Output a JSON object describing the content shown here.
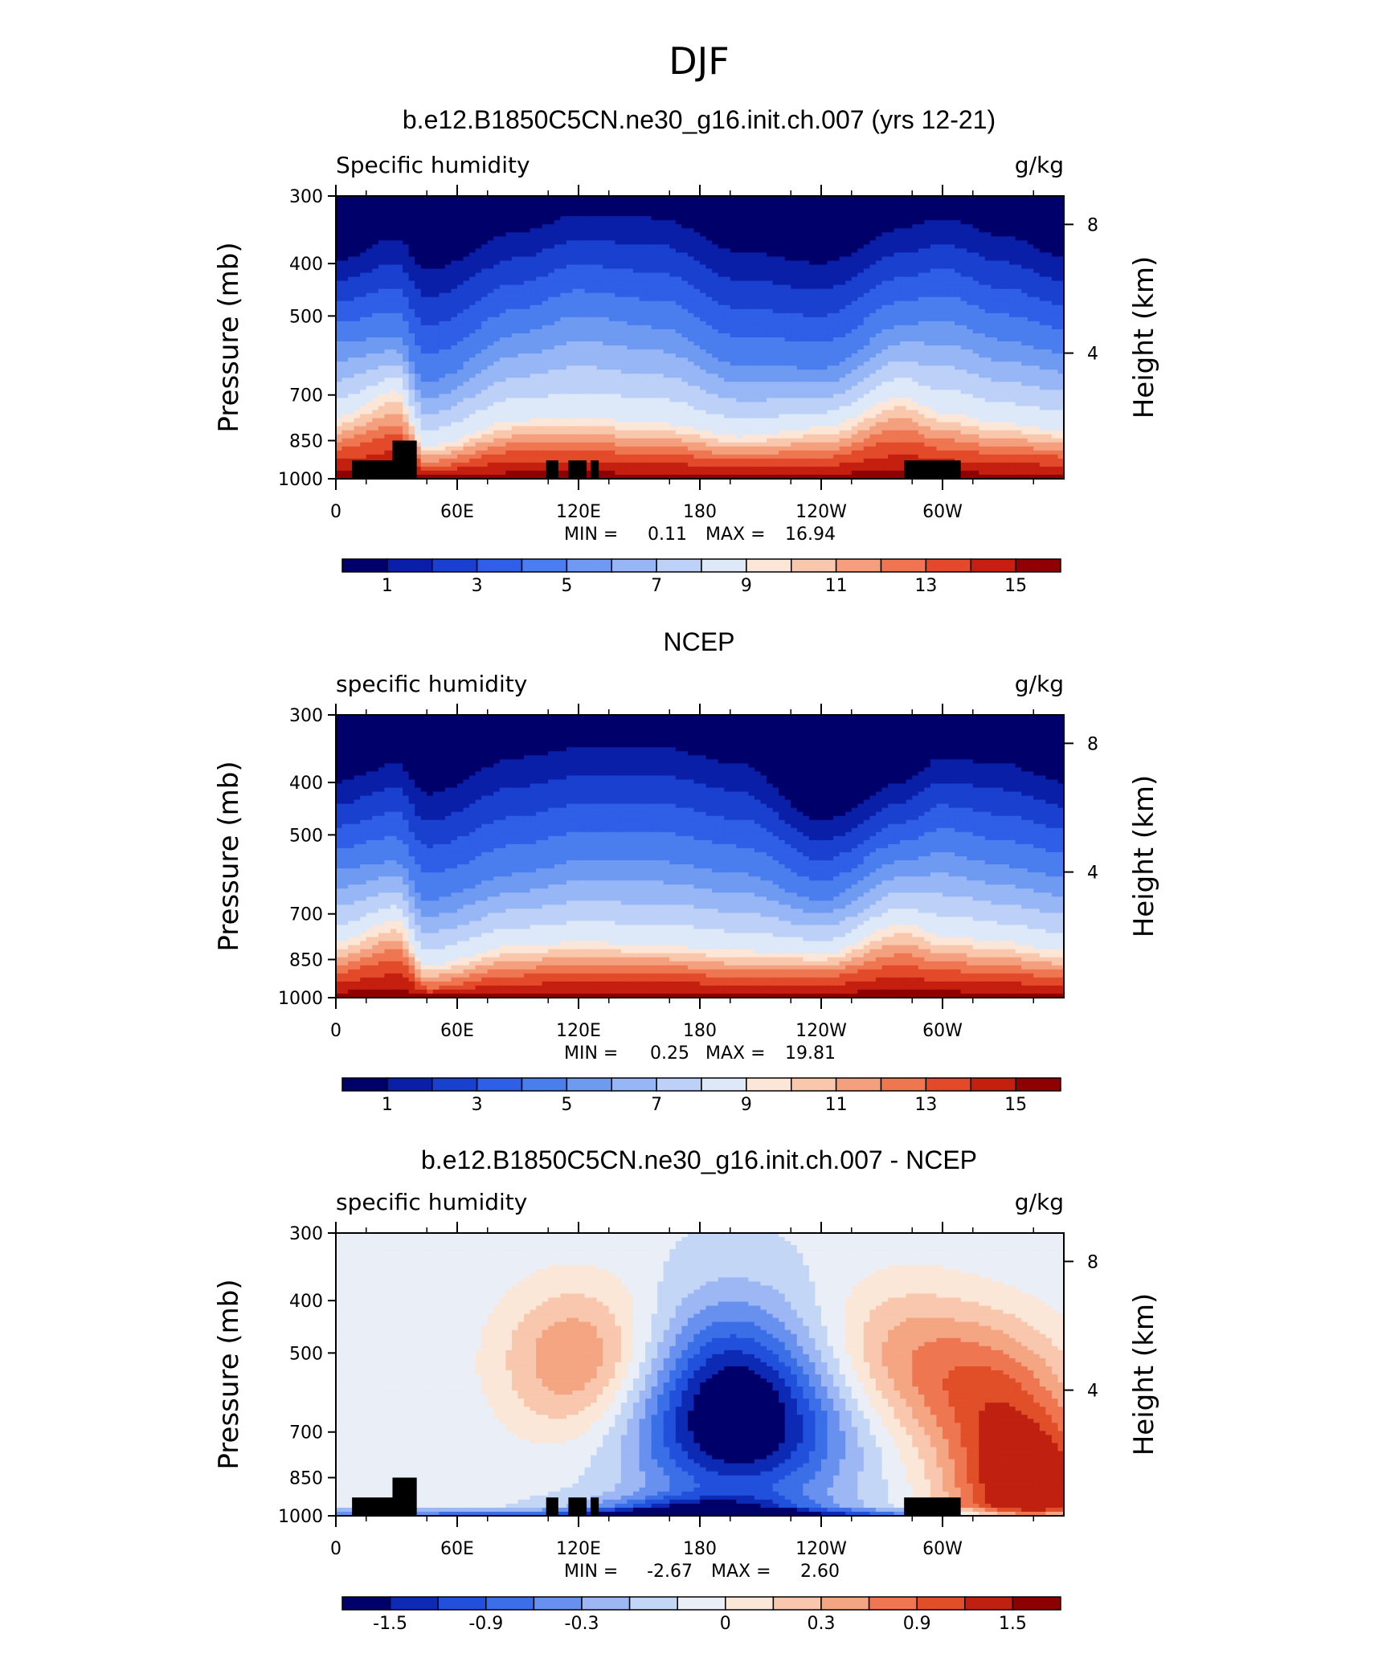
{
  "figure": {
    "title": "DJF",
    "panels": [
      {
        "title": "b.e12.B1850C5CN.ne30_g16.init.ch.007 (yrs 12-21)",
        "left_label": "Specific humidity",
        "right_label": "g/kg",
        "stats": {
          "min_label": "MIN =",
          "min_value": "0.11",
          "max_label": "MAX =",
          "max_value": "16.94"
        }
      },
      {
        "title": "NCEP",
        "left_label": "specific humidity",
        "right_label": "g/kg",
        "stats": {
          "min_label": "MIN =",
          "min_value": "0.25",
          "max_label": "MAX =",
          "max_value": "19.81"
        }
      },
      {
        "title": "b.e12.B1850C5CN.ne30_g16.init.ch.007 - NCEP",
        "left_label": "specific humidity",
        "right_label": "g/kg",
        "stats": {
          "min_label": "MIN =",
          "min_value": "-2.67",
          "max_label": "MAX =",
          "max_value": "2.60"
        }
      }
    ],
    "x_ticks": [
      "0",
      "60E",
      "120E",
      "180",
      "120W",
      "60W"
    ],
    "y_ticks": [
      "300",
      "400",
      "500",
      "700",
      "850",
      "1000"
    ],
    "y_left_label": "Pressure (mb)",
    "y_right_label": "Height (km)",
    "y_right_ticks": [
      "8",
      "4"
    ],
    "colorbar_abs_labels": [
      "1",
      "3",
      "5",
      "7",
      "9",
      "11",
      "13",
      "15"
    ],
    "colorbar_diff_labels": [
      "-1.5",
      "-0.9",
      "-0.3",
      "0",
      "0.3",
      "0.9",
      "1.5"
    ]
  },
  "colors": {
    "abs": [
      "#00006b",
      "#0a1fa8",
      "#1a40cf",
      "#2f5fe6",
      "#4a7eef",
      "#6f9af2",
      "#97b6f5",
      "#bdd0f7",
      "#dde8f8",
      "#fbe6d7",
      "#f8c7ac",
      "#f4a07f",
      "#ee7752",
      "#e24a2a",
      "#c41f0f",
      "#8f0000"
    ],
    "diff": [
      "#00006b",
      "#0d2ab5",
      "#2150dc",
      "#3a6fe8",
      "#6890ef",
      "#9cb7f3",
      "#c4d6f6",
      "#e9eef7",
      "#fbe7d8",
      "#f8c7ad",
      "#f4a582",
      "#ee7650",
      "#e04f28",
      "#bf2010",
      "#8c0000"
    ]
  },
  "chart_data": [
    {
      "type": "heatmap",
      "title": "b.e12.B1850C5CN.ne30_g16.init.ch.007 (yrs 12-21)",
      "variable": "Specific humidity",
      "units": "g/kg",
      "x_axis": {
        "ticks": [
          "0",
          "60E",
          "120E",
          "180",
          "120W",
          "60W"
        ],
        "range": [
          0,
          360
        ]
      },
      "y_axis": {
        "label": "Pressure (mb)",
        "ticks": [
          300,
          400,
          500,
          700,
          850,
          1000
        ],
        "range": [
          300,
          1000
        ]
      },
      "y_axis_right": {
        "label": "Height (km)",
        "ticks": [
          8,
          4
        ]
      },
      "contour_levels": [
        1,
        2,
        3,
        4,
        5,
        6,
        7,
        8,
        9,
        10,
        11,
        12,
        13,
        14,
        15
      ],
      "min": 0.11,
      "max": 16.94,
      "approx_level_boundaries_pressure_at_lon": {
        "lon": [
          0,
          30,
          45,
          90,
          120,
          160,
          200,
          240,
          280,
          300,
          330,
          360
        ],
        "q1": [
          395,
          360,
          410,
          350,
          325,
          330,
          380,
          400,
          345,
          330,
          355,
          390
        ],
        "q5": [
          560,
          545,
          660,
          540,
          500,
          525,
          615,
          625,
          520,
          510,
          555,
          585
        ],
        "q9": [
          770,
          690,
          870,
          780,
          770,
          790,
          835,
          805,
          705,
          755,
          790,
          815
        ],
        "q13": [
          880,
          830,
          950,
          890,
          890,
          900,
          925,
          915,
          850,
          880,
          900,
          910
        ]
      }
    },
    {
      "type": "heatmap",
      "title": "NCEP",
      "variable": "specific humidity",
      "units": "g/kg",
      "x_axis": {
        "ticks": [
          "0",
          "60E",
          "120E",
          "180",
          "120W",
          "60W"
        ],
        "range": [
          0,
          360
        ]
      },
      "y_axis": {
        "label": "Pressure (mb)",
        "ticks": [
          300,
          400,
          500,
          700,
          850,
          1000
        ],
        "range": [
          300,
          1000
        ]
      },
      "y_axis_right": {
        "label": "Height (km)",
        "ticks": [
          8,
          4
        ]
      },
      "contour_levels": [
        1,
        2,
        3,
        4,
        5,
        6,
        7,
        8,
        9,
        10,
        11,
        12,
        13,
        14,
        15
      ],
      "min": 0.25,
      "max": 19.81,
      "approx_level_boundaries_pressure_at_lon": {
        "lon": [
          0,
          30,
          45,
          90,
          120,
          160,
          200,
          240,
          280,
          300,
          330,
          360
        ],
        "q1": [
          400,
          370,
          420,
          360,
          345,
          345,
          370,
          470,
          400,
          360,
          370,
          400
        ],
        "q5": [
          580,
          560,
          660,
          590,
          560,
          560,
          590,
          660,
          560,
          540,
          570,
          600
        ],
        "q9": [
          790,
          720,
          870,
          800,
          790,
          800,
          820,
          830,
          730,
          770,
          790,
          820
        ],
        "q13": [
          900,
          850,
          960,
          910,
          900,
          900,
          915,
          915,
          870,
          890,
          905,
          915
        ]
      }
    },
    {
      "type": "heatmap",
      "title": "b.e12.B1850C5CN.ne30_g16.init.ch.007 - NCEP",
      "variable": "specific humidity",
      "units": "g/kg",
      "x_axis": {
        "ticks": [
          "0",
          "60E",
          "120E",
          "180",
          "120W",
          "60W"
        ],
        "range": [
          0,
          360
        ]
      },
      "y_axis": {
        "label": "Pressure (mb)",
        "ticks": [
          300,
          400,
          500,
          700,
          850,
          1000
        ],
        "range": [
          300,
          1000
        ]
      },
      "y_axis_right": {
        "label": "Height (km)",
        "ticks": [
          8,
          4
        ]
      },
      "contour_levels": [
        -1.8,
        -1.5,
        -1.2,
        -0.9,
        -0.6,
        -0.3,
        0,
        0.3,
        0.6,
        0.9,
        1.2,
        1.5,
        1.8
      ],
      "min": -2.67,
      "max": 2.6,
      "features": [
        {
          "lon": 120,
          "pressure": 520,
          "value": 1.2
        },
        {
          "lon": 200,
          "pressure": 700,
          "value": -2.0
        },
        {
          "lon": 195,
          "pressure": 510,
          "value": -0.9
        },
        {
          "lon": 278,
          "pressure": 510,
          "value": 0.9
        },
        {
          "lon": 325,
          "pressure": 590,
          "value": 1.2
        },
        {
          "lon": 345,
          "pressure": 920,
          "value": 2.2
        },
        {
          "lon": 180,
          "pressure": 995,
          "value": -1.8
        }
      ]
    }
  ]
}
